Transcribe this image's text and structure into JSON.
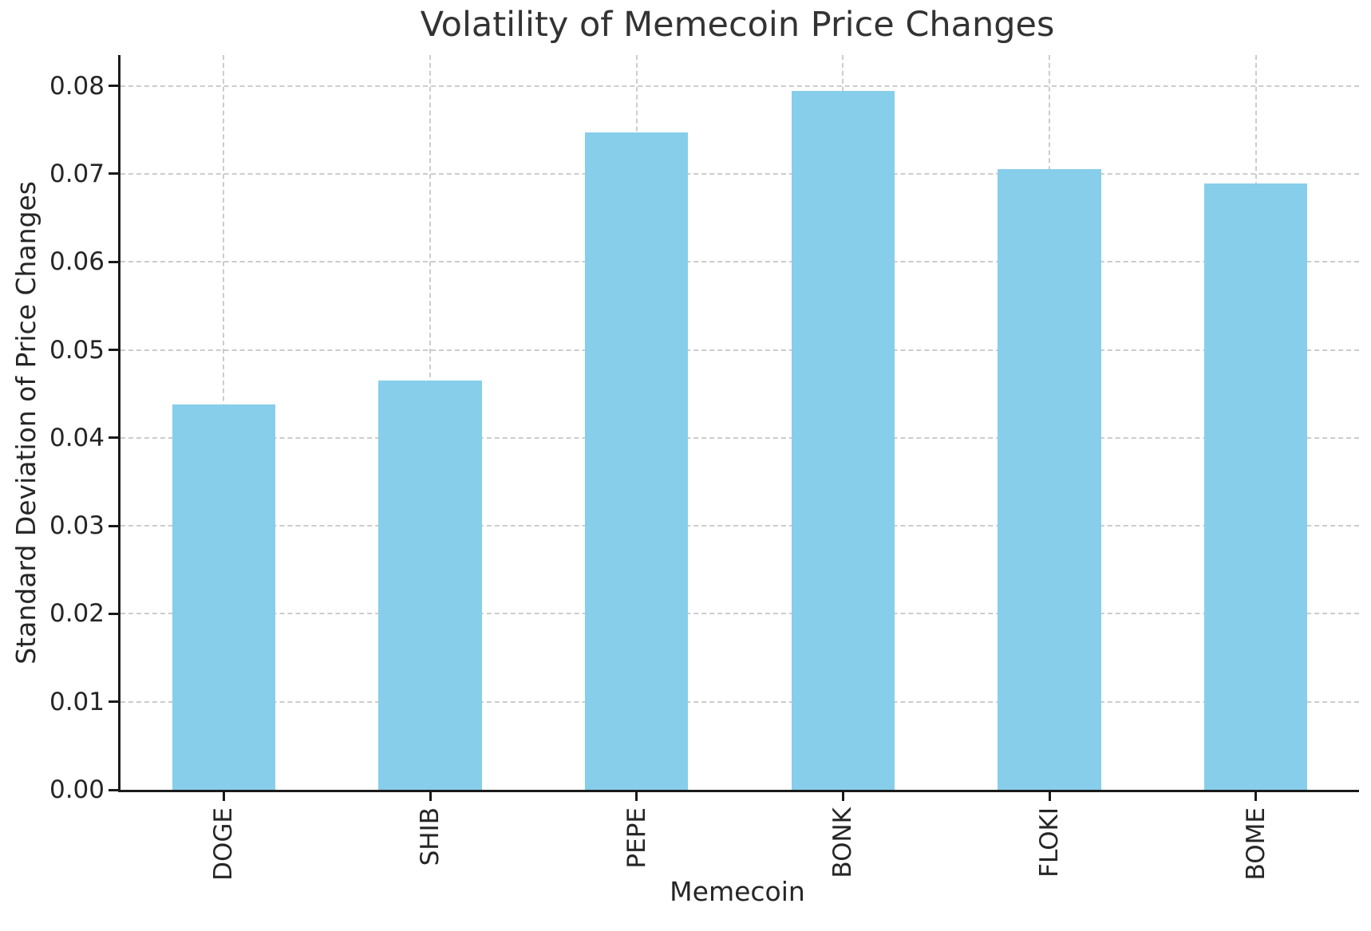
{
  "chart_data": {
    "type": "bar",
    "title": "Volatility of Memecoin Price Changes",
    "xlabel": "Memecoin",
    "ylabel": "Standard Deviation of Price Changes",
    "categories": [
      "DOGE",
      "SHIB",
      "PEPE",
      "BONK",
      "FLOKI",
      "BOME"
    ],
    "values": [
      0.0438,
      0.0465,
      0.0747,
      0.0794,
      0.0705,
      0.0689
    ],
    "yticks": [
      0.0,
      0.01,
      0.02,
      0.03,
      0.04,
      0.05,
      0.06,
      0.07,
      0.08
    ],
    "ytick_labels": [
      "0.00",
      "0.01",
      "0.02",
      "0.03",
      "0.04",
      "0.05",
      "0.06",
      "0.07",
      "0.08"
    ],
    "ylim": [
      0,
      0.0835
    ],
    "bar_width_fraction": 0.5,
    "grid": "dashed-both-axes",
    "legend": "none",
    "colors": {
      "bar": "#87CEEB",
      "grid": "#cccccc",
      "axis": "#1a1a1a",
      "text": "#262626",
      "title_text": "#333333",
      "background": "#ffffff"
    }
  }
}
